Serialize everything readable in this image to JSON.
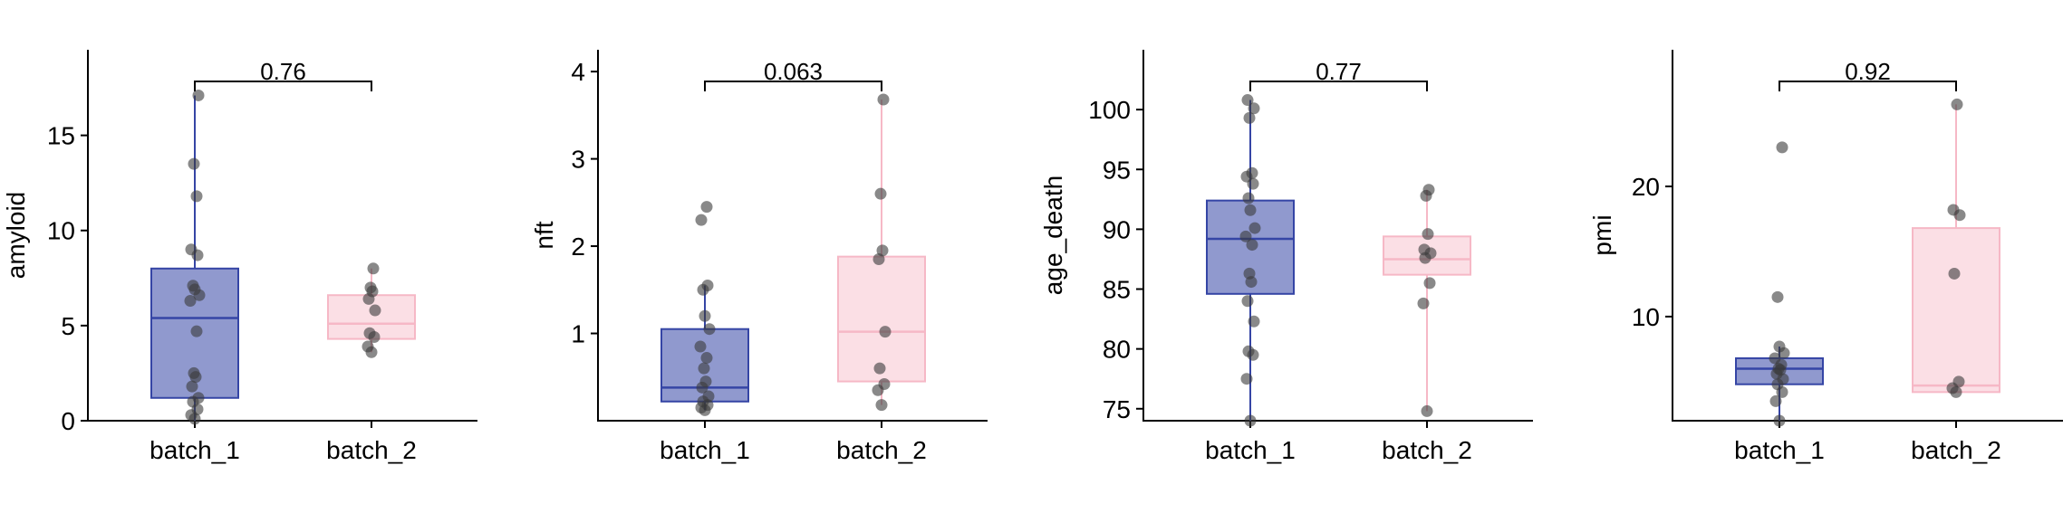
{
  "colors": {
    "batch_1": "#3545a5",
    "batch_2": "#f6b8c6",
    "points": "#3a3a3a",
    "axis": "#000000"
  },
  "chart_data": [
    {
      "type": "box",
      "ylabel": "amyloid",
      "categories": [
        "batch_1",
        "batch_2"
      ],
      "ylim": [
        0,
        19.5
      ],
      "yticks": [
        0,
        5,
        10,
        15
      ],
      "ytick_labels": [
        "0",
        "5",
        "10",
        "15"
      ],
      "pvalue": "0.76",
      "boxes": [
        {
          "whisker_low": 0.0,
          "q1": 1.2,
          "median": 5.4,
          "q3": 8.0,
          "whisker_high": 17.1
        },
        {
          "whisker_low": 3.6,
          "q1": 4.3,
          "median": 5.1,
          "q3": 6.6,
          "whisker_high": 8.0
        }
      ],
      "points": [
        [
          0.1,
          0.3,
          0.6,
          1.0,
          1.2,
          1.8,
          2.3,
          2.5,
          4.7,
          6.3,
          6.6,
          6.9,
          7.1,
          8.7,
          9.0,
          11.8,
          13.5,
          17.1
        ],
        [
          3.6,
          3.9,
          4.4,
          4.6,
          5.8,
          6.4,
          6.8,
          7.0,
          8.0
        ]
      ]
    },
    {
      "type": "box",
      "ylabel": "nft",
      "categories": [
        "batch_1",
        "batch_2"
      ],
      "ylim": [
        0.0,
        4.25
      ],
      "yticks": [
        1,
        2,
        3,
        4
      ],
      "ytick_labels": [
        "1",
        "2",
        "3",
        "4"
      ],
      "pvalue": "0.063",
      "boxes": [
        {
          "whisker_low": 0.12,
          "q1": 0.22,
          "median": 0.38,
          "q3": 1.05,
          "whisker_high": 1.55
        },
        {
          "whisker_low": 0.18,
          "q1": 0.45,
          "median": 1.02,
          "q3": 1.88,
          "whisker_high": 3.68
        }
      ],
      "points": [
        [
          0.12,
          0.15,
          0.18,
          0.22,
          0.28,
          0.38,
          0.45,
          0.6,
          0.72,
          0.85,
          1.05,
          1.2,
          1.5,
          1.55,
          2.3,
          2.45
        ],
        [
          0.18,
          0.35,
          0.42,
          0.6,
          1.02,
          1.85,
          1.95,
          2.6,
          3.68
        ]
      ]
    },
    {
      "type": "box",
      "ylabel": "age_death",
      "categories": [
        "batch_1",
        "batch_2"
      ],
      "ylim": [
        74,
        105
      ],
      "yticks": [
        75,
        80,
        85,
        90,
        95,
        100
      ],
      "ytick_labels": [
        "75",
        "80",
        "85",
        "90",
        "95",
        "100"
      ],
      "pvalue": "0.77",
      "boxes": [
        {
          "whisker_low": 74.0,
          "q1": 84.6,
          "median": 89.2,
          "q3": 92.4,
          "whisker_high": 100.8
        },
        {
          "whisker_low": 74.8,
          "q1": 86.2,
          "median": 87.5,
          "q3": 89.4,
          "whisker_high": 93.3
        }
      ],
      "points": [
        [
          74.0,
          77.5,
          79.5,
          79.8,
          82.3,
          84.0,
          85.6,
          86.3,
          88.7,
          89.4,
          90.1,
          91.6,
          92.6,
          93.8,
          94.4,
          94.7,
          99.3,
          100.1,
          100.8
        ],
        [
          74.8,
          83.8,
          85.5,
          87.6,
          88.0,
          88.3,
          89.6,
          92.8,
          93.3
        ]
      ]
    },
    {
      "type": "box",
      "ylabel": "pmi",
      "categories": [
        "batch_1",
        "batch_2"
      ],
      "ylim": [
        2,
        30.5
      ],
      "yticks": [
        10,
        20
      ],
      "ytick_labels": [
        "10",
        "20"
      ],
      "pvalue": "0.92",
      "boxes": [
        {
          "whisker_low": 2.0,
          "q1": 4.8,
          "median": 6.0,
          "q3": 6.8,
          "whisker_high": 7.7
        },
        {
          "whisker_low": 4.2,
          "q1": 4.2,
          "median": 4.7,
          "q3": 16.8,
          "whisker_high": 26.3
        }
      ],
      "points": [
        [
          2.0,
          3.5,
          4.2,
          4.8,
          5.2,
          5.6,
          5.9,
          6.0,
          6.3,
          6.8,
          7.2,
          7.7,
          11.5,
          23.0
        ],
        [
          4.2,
          4.5,
          5.0,
          13.3,
          17.8,
          18.2,
          26.3
        ]
      ]
    }
  ]
}
